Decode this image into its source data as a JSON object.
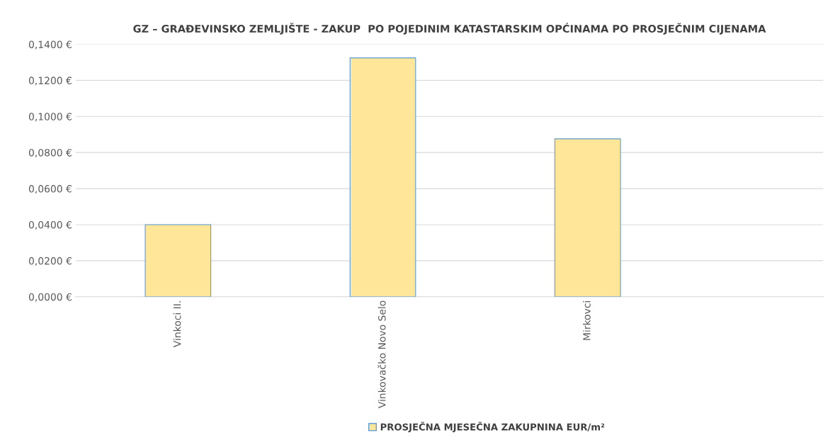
{
  "chart_data": {
    "type": "bar",
    "title": "GZ – GRAĐEVINSKO ZEMLJIŠTE - ZAKUP  PO POJEDINIM KATASTARSKIM OPĆINAMA PO PROSJEČNIM CIJENAMA",
    "categories": [
      "Vinkoci II.",
      "Vinkovačko Novo Selo",
      "Mirkovci"
    ],
    "series": [
      {
        "name": "PROSJEČNA MJESEČNA ZAKUPNINA EUR/m²",
        "color": "#ffe699",
        "values": [
          0.04,
          0.1325,
          0.0876
        ]
      }
    ],
    "ylim": [
      0,
      0.14
    ],
    "yticks": [
      {
        "value": 0,
        "label": "0,0000 €"
      },
      {
        "value": 0.02,
        "label": "0,0200 €"
      },
      {
        "value": 0.04,
        "label": "0,0400 €"
      },
      {
        "value": 0.06,
        "label": "0,0600 €"
      },
      {
        "value": 0.08,
        "label": "0,0800 €"
      },
      {
        "value": 0.1,
        "label": "0,1000 €"
      },
      {
        "value": 0.12,
        "label": "0,1200 €"
      },
      {
        "value": 0.14,
        "label": "0,1400 €"
      }
    ],
    "grid": "y",
    "legend": "bottom"
  }
}
